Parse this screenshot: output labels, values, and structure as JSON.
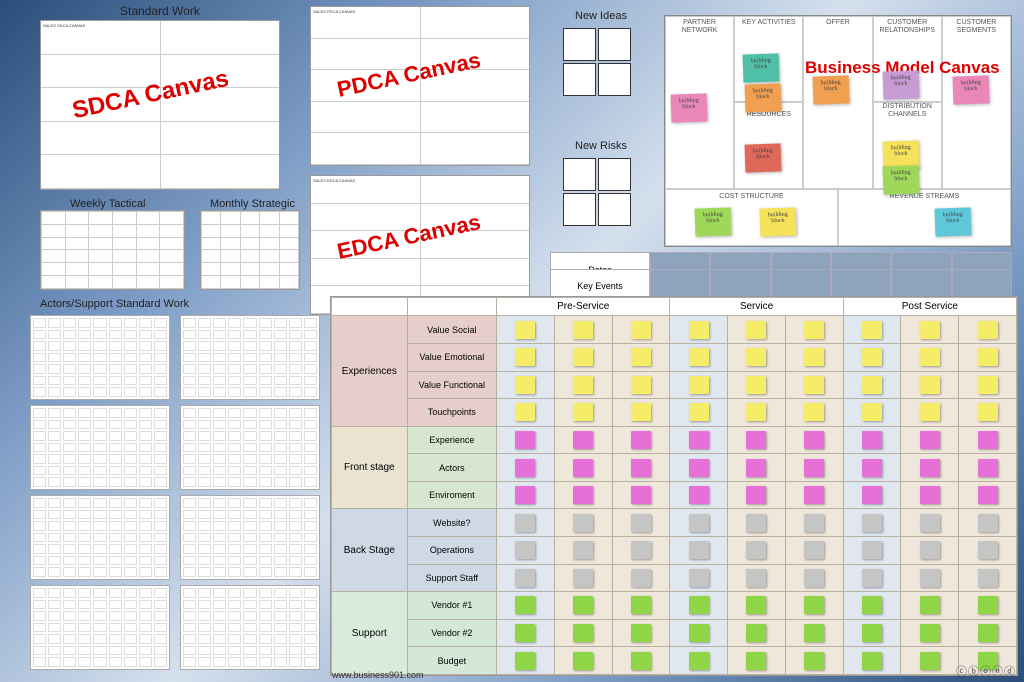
{
  "labels": {
    "standard_work": "Standard Work",
    "weekly": "Weekly Tactical",
    "monthly": "Monthly Strategic",
    "actors_support": "Actors/Support Standard Work",
    "new_ideas": "New Ideas",
    "new_risks": "New Risks"
  },
  "canvas_overlays": {
    "sdca": "SDCA Canvas",
    "pdca": "PDCA Canvas",
    "edca": "EDCA Canvas"
  },
  "bmc": {
    "title": "Business Model Canvas",
    "headers": {
      "partner": "PARTNER NETWORK",
      "activities": "KEY ACTIVITIES",
      "offer": "OFFER",
      "relationships": "CUSTOMER RELATIONSHIPS",
      "segments": "CUSTOMER SEGMENTS",
      "resources": "KEY RESOURCES",
      "channels": "DISTRIBUTION CHANNELS",
      "cost": "COST STRUCTURE",
      "revenue": "REVENUE STREAMS"
    },
    "sticky_text": "building block",
    "sticky_colors": {
      "pink": "#e988b8",
      "orange": "#f0a050",
      "teal": "#4fbfa8",
      "purple": "#c79bd4",
      "cyan": "#5fc8d8",
      "yellow": "#f5e25a",
      "green": "#9fd858",
      "red": "#e06858",
      "blue": "#8fb6df"
    }
  },
  "timeline": {
    "dates": "Dates",
    "events": "Key Events"
  },
  "matrix": {
    "phases": [
      "Pre-Service",
      "Service",
      "Post Service"
    ],
    "groups": [
      {
        "name": "Experiences",
        "segClass": "seg-exp",
        "note": "y",
        "rows": [
          "Value Social",
          "Value Emotional",
          "Value Functional",
          "Touchpoints"
        ]
      },
      {
        "name": "Front stage",
        "segClass": "seg-front",
        "note": "p",
        "rows": [
          "Experience",
          "Actors",
          "Enviroment"
        ]
      },
      {
        "name": "Back Stage",
        "segClass": "seg-back",
        "note": "s",
        "rows": [
          "Website?",
          "Operations",
          "Support Staff"
        ]
      },
      {
        "name": "Support",
        "segClass": "seg-sup",
        "note": "g",
        "rows": [
          "Vendor #1",
          "Vendor #2",
          "Budget"
        ]
      }
    ],
    "columns": 9
  },
  "footer": "www.business901.com",
  "cc": "ⓒⓑⓞⓝⓓ"
}
